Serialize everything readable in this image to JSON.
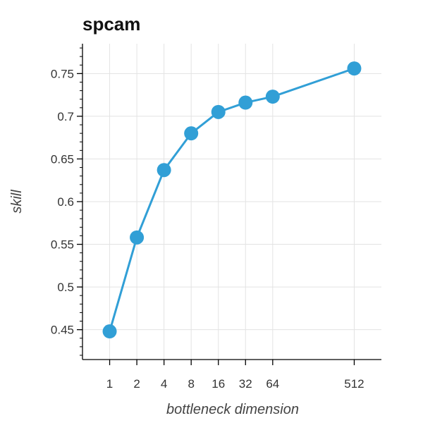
{
  "chart_data": {
    "type": "line",
    "title": "spcam",
    "xlabel": "bottleneck dimension",
    "ylabel": "skill",
    "x_scale": "log2",
    "x": [
      1,
      2,
      4,
      8,
      16,
      32,
      64,
      512
    ],
    "x_tick_labels": [
      "1",
      "2",
      "4",
      "8",
      "16",
      "32",
      "64",
      "512"
    ],
    "series": [
      {
        "values": [
          0.448,
          0.558,
          0.637,
          0.68,
          0.705,
          0.716,
          0.723,
          0.756
        ]
      }
    ],
    "y_ticks": [
      0.45,
      0.5,
      0.55,
      0.6,
      0.65,
      0.7,
      0.75
    ],
    "y_tick_labels": [
      "0.45",
      "0.5",
      "0.55",
      "0.6",
      "0.65",
      "0.7",
      "0.75"
    ],
    "ylim": [
      0.415,
      0.785
    ],
    "xlim": [
      0.5,
      1024
    ],
    "grid": true,
    "colors": {
      "series": "#319fd6"
    }
  }
}
